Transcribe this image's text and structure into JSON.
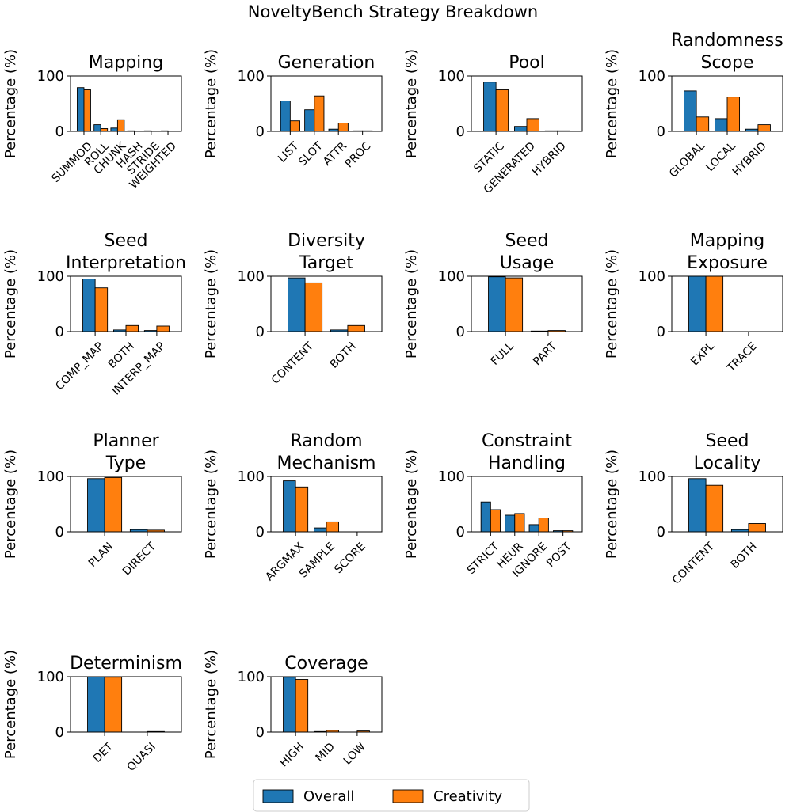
{
  "title": "NoveltyBench Strategy Breakdown",
  "ylabel": "Percentage (%)",
  "legend": {
    "position": "bottom-center",
    "entries": [
      {
        "label": "Overall",
        "color": "#1f77b4"
      },
      {
        "label": "Creativity",
        "color": "#ff7f0e"
      }
    ]
  },
  "chart_data": [
    {
      "type": "bar",
      "title": [
        "Mapping"
      ],
      "ylabel": "Percentage (%)",
      "ylim": [
        0,
        100
      ],
      "yticks": [
        0,
        100
      ],
      "categories": [
        "SUMMOD",
        "ROLL",
        "CHUNK",
        "HASH",
        "STRIDE",
        "WEIGHTED"
      ],
      "series": [
        {
          "name": "Overall",
          "values": [
            79,
            12,
            6,
            1,
            1,
            1
          ]
        },
        {
          "name": "Creativity",
          "values": [
            75,
            5,
            21,
            0,
            0,
            0
          ]
        }
      ]
    },
    {
      "type": "bar",
      "title": [
        "Generation"
      ],
      "ylabel": "Percentage (%)",
      "ylim": [
        0,
        100
      ],
      "yticks": [
        0,
        100
      ],
      "categories": [
        "LIST",
        "SLOT",
        "ATTR",
        "PROC"
      ],
      "series": [
        {
          "name": "Overall",
          "values": [
            55,
            39,
            4,
            1
          ]
        },
        {
          "name": "Creativity",
          "values": [
            19,
            64,
            15,
            1
          ]
        }
      ]
    },
    {
      "type": "bar",
      "title": [
        "Pool"
      ],
      "ylabel": "Percentage (%)",
      "ylim": [
        0,
        100
      ],
      "yticks": [
        0,
        100
      ],
      "categories": [
        "STATIC",
        "GENERATED",
        "HYBRID"
      ],
      "series": [
        {
          "name": "Overall",
          "values": [
            89,
            9,
            1
          ]
        },
        {
          "name": "Creativity",
          "values": [
            75,
            23,
            1
          ]
        }
      ]
    },
    {
      "type": "bar",
      "title": [
        "Randomness",
        "Scope"
      ],
      "ylabel": "Percentage (%)",
      "ylim": [
        0,
        100
      ],
      "yticks": [
        0,
        100
      ],
      "categories": [
        "GLOBAL",
        "LOCAL",
        "HYBRID"
      ],
      "series": [
        {
          "name": "Overall",
          "values": [
            73,
            23,
            4
          ]
        },
        {
          "name": "Creativity",
          "values": [
            26,
            62,
            12
          ]
        }
      ]
    },
    {
      "type": "bar",
      "title": [
        "Seed",
        "Interpretation"
      ],
      "ylabel": "Percentage (%)",
      "ylim": [
        0,
        100
      ],
      "yticks": [
        0,
        100
      ],
      "categories": [
        "COMP_MAP",
        "BOTH",
        "INTERP_MAP"
      ],
      "series": [
        {
          "name": "Overall",
          "values": [
            95,
            3,
            2
          ]
        },
        {
          "name": "Creativity",
          "values": [
            79,
            11,
            10
          ]
        }
      ]
    },
    {
      "type": "bar",
      "title": [
        "Diversity",
        "Target"
      ],
      "ylabel": "Percentage (%)",
      "ylim": [
        0,
        100
      ],
      "yticks": [
        0,
        100
      ],
      "categories": [
        "CONTENT",
        "BOTH"
      ],
      "series": [
        {
          "name": "Overall",
          "values": [
            97,
            3
          ]
        },
        {
          "name": "Creativity",
          "values": [
            88,
            11
          ]
        }
      ]
    },
    {
      "type": "bar",
      "title": [
        "Seed",
        "Usage"
      ],
      "ylabel": "Percentage (%)",
      "ylim": [
        0,
        100
      ],
      "yticks": [
        0,
        100
      ],
      "categories": [
        "FULL",
        "PART"
      ],
      "series": [
        {
          "name": "Overall",
          "values": [
            99,
            1
          ]
        },
        {
          "name": "Creativity",
          "values": [
            97,
            2
          ]
        }
      ]
    },
    {
      "type": "bar",
      "title": [
        "Mapping",
        "Exposure"
      ],
      "ylabel": "Percentage (%)",
      "ylim": [
        0,
        100
      ],
      "yticks": [
        0,
        100
      ],
      "categories": [
        "EXPL",
        "TRACE"
      ],
      "series": [
        {
          "name": "Overall",
          "values": [
            100,
            0
          ]
        },
        {
          "name": "Creativity",
          "values": [
            100,
            0
          ]
        }
      ]
    },
    {
      "type": "bar",
      "title": [
        "Planner",
        "Type"
      ],
      "ylabel": "Percentage (%)",
      "ylim": [
        0,
        100
      ],
      "yticks": [
        0,
        100
      ],
      "categories": [
        "PLAN",
        "DIRECT"
      ],
      "series": [
        {
          "name": "Overall",
          "values": [
            96,
            4
          ]
        },
        {
          "name": "Creativity",
          "values": [
            98,
            3
          ]
        }
      ]
    },
    {
      "type": "bar",
      "title": [
        "Random",
        "Mechanism"
      ],
      "ylabel": "Percentage (%)",
      "ylim": [
        0,
        100
      ],
      "yticks": [
        0,
        100
      ],
      "categories": [
        "ARGMAX",
        "SAMPLE",
        "SCORE"
      ],
      "series": [
        {
          "name": "Overall",
          "values": [
            92,
            7,
            0
          ]
        },
        {
          "name": "Creativity",
          "values": [
            81,
            18,
            0
          ]
        }
      ]
    },
    {
      "type": "bar",
      "title": [
        "Constraint",
        "Handling"
      ],
      "ylabel": "Percentage (%)",
      "ylim": [
        0,
        100
      ],
      "yticks": [
        0,
        100
      ],
      "categories": [
        "STRICT",
        "HEUR",
        "IGNORE",
        "POST"
      ],
      "series": [
        {
          "name": "Overall",
          "values": [
            54,
            30,
            13,
            2
          ]
        },
        {
          "name": "Creativity",
          "values": [
            40,
            33,
            25,
            2
          ]
        }
      ]
    },
    {
      "type": "bar",
      "title": [
        "Seed",
        "Locality"
      ],
      "ylabel": "Percentage (%)",
      "ylim": [
        0,
        100
      ],
      "yticks": [
        0,
        100
      ],
      "categories": [
        "CONTENT",
        "BOTH"
      ],
      "series": [
        {
          "name": "Overall",
          "values": [
            96,
            4
          ]
        },
        {
          "name": "Creativity",
          "values": [
            84,
            15
          ]
        }
      ]
    },
    {
      "type": "bar",
      "title": [
        "Determinism"
      ],
      "ylabel": "Percentage (%)",
      "ylim": [
        0,
        100
      ],
      "yticks": [
        0,
        100
      ],
      "categories": [
        "DET",
        "QUASI"
      ],
      "series": [
        {
          "name": "Overall",
          "values": [
            100,
            0
          ]
        },
        {
          "name": "Creativity",
          "values": [
            99,
            1
          ]
        }
      ]
    },
    {
      "type": "bar",
      "title": [
        "Coverage"
      ],
      "ylabel": "Percentage (%)",
      "ylim": [
        0,
        100
      ],
      "yticks": [
        0,
        100
      ],
      "categories": [
        "HIGH",
        "MID",
        "LOW"
      ],
      "series": [
        {
          "name": "Overall",
          "values": [
            99,
            1,
            0
          ]
        },
        {
          "name": "Creativity",
          "values": [
            95,
            3,
            2
          ]
        }
      ]
    }
  ]
}
